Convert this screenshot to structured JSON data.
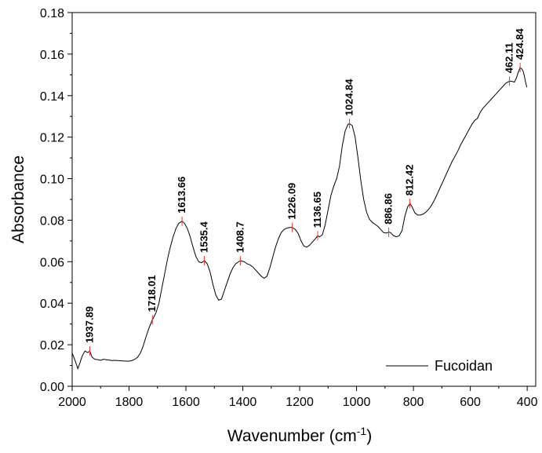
{
  "chart_data": {
    "type": "line",
    "xlabel": "Wavenumber (cm",
    "xlabel_sup": "-1",
    "xlabel_close": ")",
    "ylabel": "Absorbance",
    "xlim": [
      2000,
      370
    ],
    "ylim": [
      0,
      0.18
    ],
    "x_ticks": [
      2000,
      1800,
      1600,
      1400,
      1200,
      1000,
      800,
      600,
      400
    ],
    "y_ticks": [
      0.0,
      0.02,
      0.04,
      0.06,
      0.08,
      0.1,
      0.12,
      0.14,
      0.16,
      0.18
    ],
    "x_tick_labels": [
      "2000",
      "1800",
      "1600",
      "1400",
      "1200",
      "1000",
      "800",
      "600",
      "400"
    ],
    "y_tick_labels": [
      "0.00",
      "0.02",
      "0.04",
      "0.06",
      "0.08",
      "0.10",
      "0.12",
      "0.14",
      "0.16",
      "0.18"
    ],
    "legend": {
      "position": "bottom-right",
      "entries": [
        "Fucoidan"
      ]
    },
    "line_color": "#000000",
    "marker_color": "#e8382e",
    "series": [
      {
        "name": "Fucoidan",
        "points": [
          [
            2000,
            0.016
          ],
          [
            1990,
            0.0125
          ],
          [
            1980,
            0.0085
          ],
          [
            1972,
            0.0115
          ],
          [
            1965,
            0.0145
          ],
          [
            1955,
            0.017
          ],
          [
            1945,
            0.0162
          ],
          [
            1938,
            0.017
          ],
          [
            1930,
            0.014
          ],
          [
            1920,
            0.013
          ],
          [
            1910,
            0.0128
          ],
          [
            1900,
            0.0125
          ],
          [
            1890,
            0.013
          ],
          [
            1880,
            0.0128
          ],
          [
            1870,
            0.0126
          ],
          [
            1860,
            0.0124
          ],
          [
            1850,
            0.0125
          ],
          [
            1840,
            0.0124
          ],
          [
            1830,
            0.0123
          ],
          [
            1820,
            0.0122
          ],
          [
            1810,
            0.0121
          ],
          [
            1800,
            0.0121
          ],
          [
            1790,
            0.0124
          ],
          [
            1780,
            0.013
          ],
          [
            1770,
            0.014
          ],
          [
            1760,
            0.016
          ],
          [
            1750,
            0.0195
          ],
          [
            1740,
            0.024
          ],
          [
            1730,
            0.028
          ],
          [
            1718,
            0.032
          ],
          [
            1705,
            0.0355
          ],
          [
            1695,
            0.04
          ],
          [
            1685,
            0.047
          ],
          [
            1675,
            0.054
          ],
          [
            1665,
            0.061
          ],
          [
            1655,
            0.067
          ],
          [
            1645,
            0.072
          ],
          [
            1635,
            0.076
          ],
          [
            1625,
            0.0785
          ],
          [
            1614,
            0.0795
          ],
          [
            1605,
            0.0785
          ],
          [
            1595,
            0.076
          ],
          [
            1585,
            0.072
          ],
          [
            1575,
            0.067
          ],
          [
            1565,
            0.0625
          ],
          [
            1555,
            0.06
          ],
          [
            1545,
            0.0595
          ],
          [
            1535,
            0.0605
          ],
          [
            1525,
            0.059
          ],
          [
            1515,
            0.055
          ],
          [
            1505,
            0.049
          ],
          [
            1495,
            0.044
          ],
          [
            1485,
            0.0415
          ],
          [
            1475,
            0.042
          ],
          [
            1465,
            0.046
          ],
          [
            1455,
            0.05
          ],
          [
            1445,
            0.054
          ],
          [
            1435,
            0.057
          ],
          [
            1425,
            0.059
          ],
          [
            1409,
            0.0605
          ],
          [
            1395,
            0.06
          ],
          [
            1385,
            0.059
          ],
          [
            1375,
            0.0585
          ],
          [
            1365,
            0.0575
          ],
          [
            1355,
            0.056
          ],
          [
            1345,
            0.0545
          ],
          [
            1335,
            0.053
          ],
          [
            1325,
            0.052
          ],
          [
            1315,
            0.053
          ],
          [
            1305,
            0.057
          ],
          [
            1295,
            0.062
          ],
          [
            1285,
            0.067
          ],
          [
            1275,
            0.071
          ],
          [
            1265,
            0.074
          ],
          [
            1255,
            0.0755
          ],
          [
            1245,
            0.0762
          ],
          [
            1235,
            0.0765
          ],
          [
            1226,
            0.0765
          ],
          [
            1215,
            0.0755
          ],
          [
            1205,
            0.0735
          ],
          [
            1195,
            0.07
          ],
          [
            1185,
            0.0675
          ],
          [
            1175,
            0.067
          ],
          [
            1165,
            0.068
          ],
          [
            1155,
            0.0695
          ],
          [
            1145,
            0.071
          ],
          [
            1137,
            0.0725
          ],
          [
            1130,
            0.072
          ],
          [
            1120,
            0.073
          ],
          [
            1110,
            0.078
          ],
          [
            1100,
            0.085
          ],
          [
            1090,
            0.092
          ],
          [
            1080,
            0.0965
          ],
          [
            1070,
            0.1
          ],
          [
            1060,
            0.106
          ],
          [
            1050,
            0.116
          ],
          [
            1040,
            0.123
          ],
          [
            1030,
            0.1262
          ],
          [
            1025,
            0.1265
          ],
          [
            1015,
            0.1255
          ],
          [
            1005,
            0.12
          ],
          [
            995,
            0.11
          ],
          [
            985,
            0.099
          ],
          [
            975,
            0.09
          ],
          [
            965,
            0.084
          ],
          [
            955,
            0.0805
          ],
          [
            945,
            0.079
          ],
          [
            935,
            0.078
          ],
          [
            925,
            0.077
          ],
          [
            915,
            0.0755
          ],
          [
            905,
            0.074
          ],
          [
            895,
            0.0738
          ],
          [
            887,
            0.0742
          ],
          [
            880,
            0.074
          ],
          [
            870,
            0.0725
          ],
          [
            860,
            0.072
          ],
          [
            850,
            0.0725
          ],
          [
            840,
            0.075
          ],
          [
            830,
            0.082
          ],
          [
            820,
            0.0865
          ],
          [
            812,
            0.088
          ],
          [
            805,
            0.0865
          ],
          [
            795,
            0.0835
          ],
          [
            785,
            0.0825
          ],
          [
            775,
            0.0825
          ],
          [
            765,
            0.083
          ],
          [
            755,
            0.084
          ],
          [
            745,
            0.0855
          ],
          [
            735,
            0.0875
          ],
          [
            725,
            0.09
          ],
          [
            715,
            0.093
          ],
          [
            705,
            0.096
          ],
          [
            695,
            0.099
          ],
          [
            685,
            0.102
          ],
          [
            675,
            0.105
          ],
          [
            665,
            0.108
          ],
          [
            655,
            0.1105
          ],
          [
            645,
            0.113
          ],
          [
            635,
            0.116
          ],
          [
            625,
            0.1185
          ],
          [
            615,
            0.121
          ],
          [
            605,
            0.1235
          ],
          [
            595,
            0.126
          ],
          [
            585,
            0.128
          ],
          [
            575,
            0.129
          ],
          [
            565,
            0.132
          ],
          [
            555,
            0.134
          ],
          [
            545,
            0.1355
          ],
          [
            535,
            0.137
          ],
          [
            525,
            0.1385
          ],
          [
            515,
            0.14
          ],
          [
            505,
            0.1415
          ],
          [
            495,
            0.143
          ],
          [
            485,
            0.1445
          ],
          [
            475,
            0.146
          ],
          [
            462,
            0.147
          ],
          [
            452,
            0.1468
          ],
          [
            445,
            0.1465
          ],
          [
            438,
            0.1485
          ],
          [
            432,
            0.151
          ],
          [
            425,
            0.1535
          ],
          [
            420,
            0.153
          ],
          [
            415,
            0.152
          ],
          [
            410,
            0.1495
          ],
          [
            405,
            0.146
          ],
          [
            401,
            0.144
          ]
        ]
      }
    ],
    "peaks": [
      {
        "x": 1937.89,
        "y": 0.017,
        "label": "1937.89"
      },
      {
        "x": 1718.01,
        "y": 0.032,
        "label": "1718.01"
      },
      {
        "x": 1613.66,
        "y": 0.0795,
        "label": "1613.66"
      },
      {
        "x": 1535.4,
        "y": 0.0605,
        "label": "1535.4"
      },
      {
        "x": 1408.7,
        "y": 0.0605,
        "label": "1408.7"
      },
      {
        "x": 1226.09,
        "y": 0.0765,
        "label": "1226.09"
      },
      {
        "x": 1136.65,
        "y": 0.0725,
        "label": "1136.65"
      },
      {
        "x": 1024.84,
        "y": 0.1265,
        "label": "1024.84"
      },
      {
        "x": 886.86,
        "y": 0.0742,
        "label": "886.86"
      },
      {
        "x": 812.42,
        "y": 0.088,
        "label": "812.42"
      },
      {
        "x": 462.11,
        "y": 0.147,
        "label": "462.11"
      },
      {
        "x": 424.84,
        "y": 0.1535,
        "label": "424.84"
      }
    ]
  }
}
